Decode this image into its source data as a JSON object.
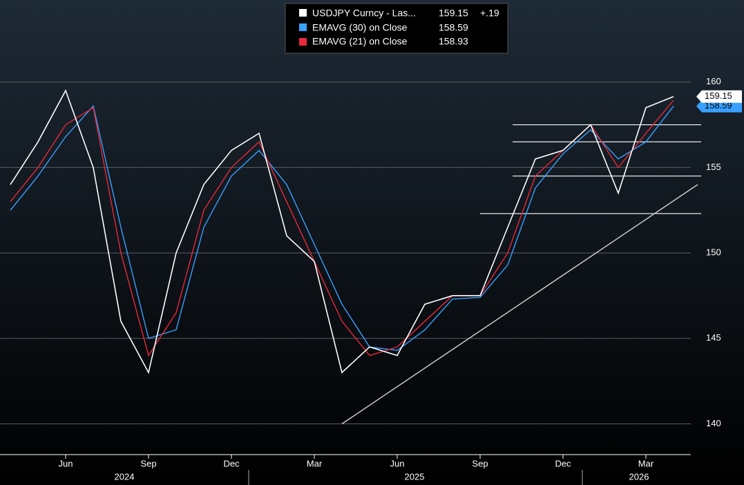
{
  "chart_data": {
    "type": "line",
    "categories": [
      "2024-04",
      "2024-05",
      "2024-06",
      "2024-07",
      "2024-08",
      "2024-09",
      "2024-10",
      "2024-11",
      "2024-12",
      "2025-01",
      "2025-02",
      "2025-03",
      "2025-04",
      "2025-05",
      "2025-06",
      "2025-07",
      "2025-08",
      "2025-09",
      "2025-10",
      "2025-11",
      "2025-12",
      "2026-01",
      "2026-02",
      "2026-03",
      "2026-04"
    ],
    "series": [
      {
        "name": "USDJPY Curncy - Las...",
        "color": "#ffffff",
        "change": "+.19",
        "values": [
          154,
          156.5,
          159.5,
          155,
          146,
          143,
          150,
          154,
          156,
          157,
          151,
          149.5,
          143,
          144.5,
          144,
          147,
          147.5,
          147.5,
          151.5,
          155.5,
          156,
          157.5,
          153.5,
          158.5,
          159.15
        ]
      },
      {
        "name": "EMAVG (30)  on Close",
        "color": "#3aa0ff",
        "values": [
          152.5,
          154.5,
          156.8,
          158.6,
          151.5,
          145,
          145.5,
          151.5,
          154.5,
          156,
          154,
          150.5,
          147,
          144.5,
          144.3,
          145.5,
          147.3,
          147.4,
          149.3,
          153.8,
          155.8,
          157.2,
          155.5,
          156.5,
          158.59
        ]
      },
      {
        "name": "EMAVG (21)  on Close",
        "color": "#e8283a",
        "values": [
          153,
          155,
          157.5,
          158.5,
          150,
          144,
          146.5,
          152.5,
          155,
          156.5,
          153,
          149.5,
          146,
          144,
          144.5,
          146,
          147.5,
          147.5,
          150,
          154.5,
          156,
          157.5,
          155,
          157,
          158.93
        ]
      }
    ],
    "ylim": [
      138.2,
      164.8
    ],
    "yticks": [
      140,
      145,
      150,
      155,
      160
    ],
    "grid": true,
    "xticks": [
      {
        "value": "2024-06",
        "label": "Jun"
      },
      {
        "value": "2024-09",
        "label": "Sep"
      },
      {
        "value": "2024-12",
        "label": "Dec"
      },
      {
        "value": "2025-03",
        "label": "Mar"
      },
      {
        "value": "2025-06",
        "label": "Jun"
      },
      {
        "value": "2025-09",
        "label": "Sep"
      },
      {
        "value": "2025-12",
        "label": "Dec"
      },
      {
        "value": "2026-03",
        "label": "Mar"
      }
    ],
    "years": [
      "2024",
      "2025",
      "2026"
    ],
    "hlines": [
      157.5,
      156.5,
      154.5,
      152.3
    ],
    "trendline": {
      "x": [
        "2025-04",
        "2026-04"
      ],
      "values": [
        140,
        154
      ]
    }
  }
}
